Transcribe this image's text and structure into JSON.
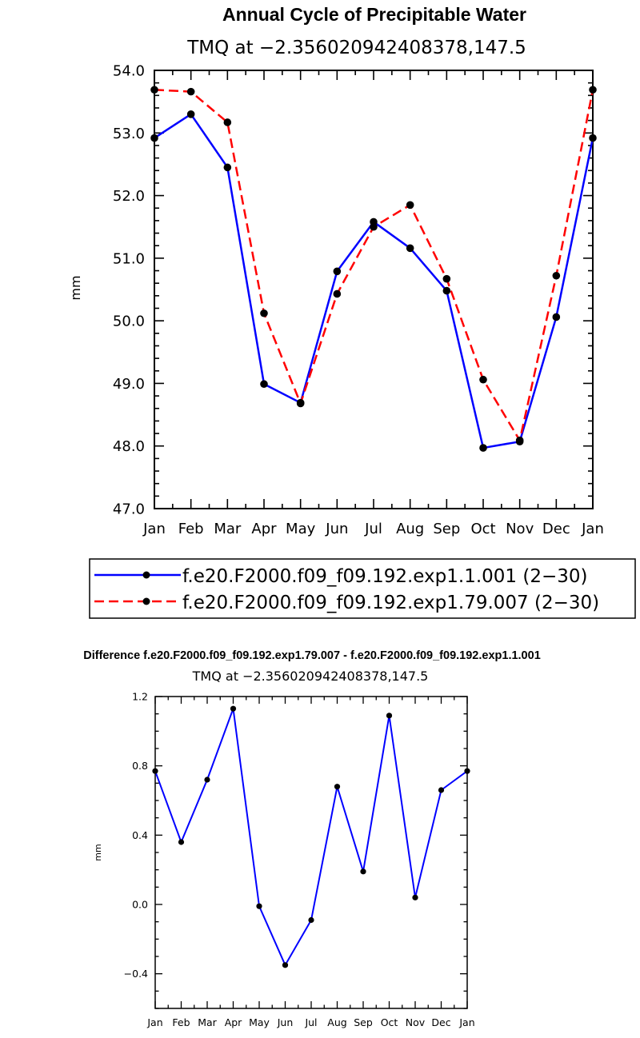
{
  "chart_data": [
    {
      "type": "line",
      "title": "Annual Cycle of Precipitable Water",
      "subtitle": "TMQ at −2.356020942408378,147.5",
      "xlabel": "",
      "ylabel": "mm",
      "categories": [
        "Jan",
        "Feb",
        "Mar",
        "Apr",
        "May",
        "Jun",
        "Jul",
        "Aug",
        "Sep",
        "Oct",
        "Nov",
        "Dec",
        "Jan"
      ],
      "ylim": [
        47.0,
        54.0
      ],
      "yticks": [
        "47.0",
        "48.0",
        "49.0",
        "50.0",
        "51.0",
        "52.0",
        "53.0",
        "54.0"
      ],
      "grid": false,
      "legend_placement": "bottom",
      "series": [
        {
          "name": "f.e20.F2000.f09_f09.192.exp1.1.001 (2−30)",
          "color": "#0000ff",
          "dash": "solid",
          "values": [
            52.92,
            53.3,
            52.45,
            48.99,
            48.69,
            50.79,
            51.58,
            51.16,
            50.48,
            47.97,
            48.07,
            50.06,
            52.92
          ]
        },
        {
          "name": "f.e20.F2000.f09_f09.192.exp1.79.007 (2−30)",
          "color": "#ff0000",
          "dash": "dashed",
          "values": [
            53.69,
            53.66,
            53.17,
            50.12,
            48.68,
            50.43,
            51.5,
            51.85,
            50.67,
            49.06,
            48.09,
            50.72,
            53.69
          ]
        }
      ]
    },
    {
      "type": "line",
      "title": "Difference f.e20.F2000.f09_f09.192.exp1.79.007 - f.e20.F2000.f09_f09.192.exp1.1.001",
      "subtitle": "TMQ at −2.356020942408378,147.5",
      "xlabel": "",
      "ylabel": "mm",
      "categories": [
        "Jan",
        "Feb",
        "Mar",
        "Apr",
        "May",
        "Jun",
        "Jul",
        "Aug",
        "Sep",
        "Oct",
        "Nov",
        "Dec",
        "Jan"
      ],
      "ylim": [
        -0.6,
        1.2
      ],
      "yticks": [
        "-0.4",
        "0.0",
        "0.4",
        "0.8",
        "1.2"
      ],
      "grid": false,
      "series": [
        {
          "name": "",
          "color": "#0000ff",
          "dash": "solid",
          "values": [
            0.77,
            0.36,
            0.72,
            1.13,
            -0.01,
            -0.35,
            -0.09,
            0.68,
            0.19,
            1.09,
            0.04,
            0.66,
            0.77
          ]
        }
      ]
    }
  ]
}
